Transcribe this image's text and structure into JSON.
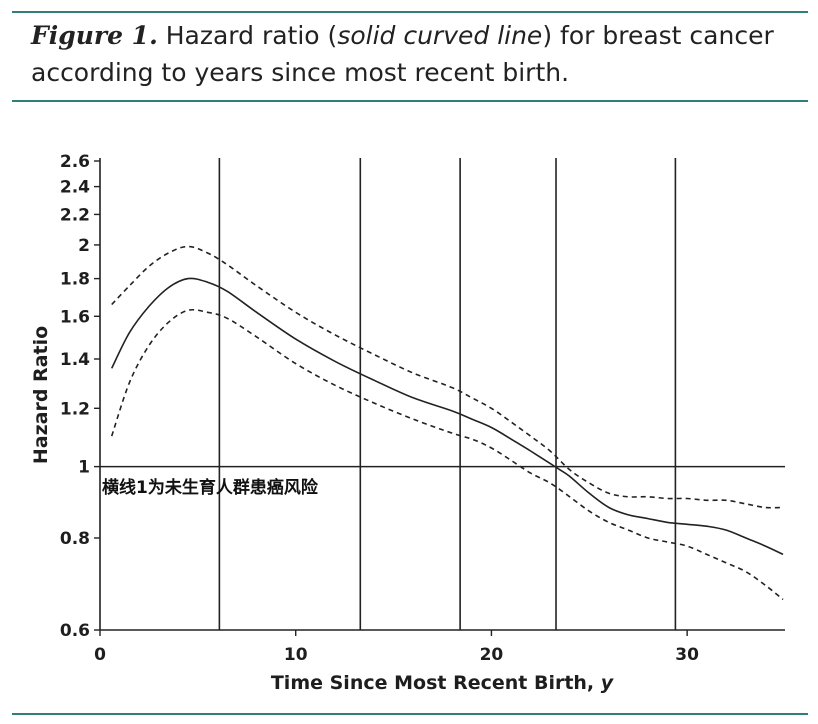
{
  "figure": {
    "label": "Figure 1.",
    "caption_before": " Hazard ratio (",
    "caption_italic": "solid curved line",
    "caption_after": ") for breast cancer according to years since most recent birth."
  },
  "colors": {
    "rule": "#2f7f7a",
    "line": "#222222"
  },
  "chart_data": {
    "type": "line",
    "title": "",
    "xlabel_main": "Time Since Most Recent Birth, ",
    "xlabel_unit": "y",
    "ylabel": "Hazard Ratio",
    "xlim": [
      0,
      35
    ],
    "ylim": [
      0.6,
      2.6
    ],
    "y_scale": "log",
    "x_ticks": [
      0,
      10,
      20,
      30
    ],
    "y_ticks": [
      0.6,
      0.8,
      1,
      1.2,
      1.4,
      1.6,
      1.8,
      2,
      2.2,
      2.4,
      2.6
    ],
    "y_tick_labels": [
      "0.6",
      "0.8",
      "1",
      "1.2",
      "1.4",
      "1.6",
      "1.8",
      "2",
      "2.2",
      "2.4",
      "2.6"
    ],
    "x_tick_labels": [
      "0",
      "10",
      "20",
      "30"
    ],
    "reference_line": {
      "y": 1
    },
    "vertical_lines_x": [
      6.1,
      13.3,
      18.4,
      23.3,
      29.4
    ],
    "annotation": "横线1为未生育人群患癌风险",
    "series": [
      {
        "style": "solid",
        "x": [
          0.6,
          1.5,
          2.5,
          3.5,
          4.5,
          5.5,
          6.5,
          8,
          10,
          12,
          14,
          16,
          18,
          19,
          20,
          21,
          22,
          23,
          23.5,
          24,
          25,
          26,
          27,
          28,
          29,
          30,
          31,
          32,
          33,
          34,
          34.9
        ],
        "y": [
          1.36,
          1.52,
          1.65,
          1.75,
          1.8,
          1.78,
          1.73,
          1.62,
          1.49,
          1.39,
          1.31,
          1.24,
          1.19,
          1.16,
          1.13,
          1.09,
          1.05,
          1.01,
          0.99,
          0.97,
          0.92,
          0.88,
          0.86,
          0.85,
          0.84,
          0.835,
          0.83,
          0.82,
          0.8,
          0.78,
          0.76
        ]
      },
      {
        "style": "dashed",
        "x": [
          0.6,
          1.5,
          2.5,
          3.5,
          4.5,
          5.5,
          6.5,
          8,
          10,
          12,
          14,
          16,
          18,
          19,
          20,
          21,
          22,
          23,
          24,
          25,
          26,
          27,
          28,
          29,
          30,
          31,
          32,
          33,
          34,
          34.9
        ],
        "y": [
          1.66,
          1.76,
          1.87,
          1.95,
          1.99,
          1.95,
          1.88,
          1.76,
          1.62,
          1.51,
          1.42,
          1.34,
          1.28,
          1.24,
          1.2,
          1.15,
          1.1,
          1.05,
          0.99,
          0.95,
          0.92,
          0.91,
          0.91,
          0.905,
          0.905,
          0.9,
          0.9,
          0.89,
          0.88,
          0.88
        ]
      },
      {
        "style": "dashed",
        "x": [
          0.6,
          1.5,
          2.5,
          3.5,
          4.5,
          5.5,
          6.5,
          8,
          10,
          12,
          14,
          16,
          18,
          19,
          20,
          21,
          22,
          23,
          24,
          25,
          26,
          27,
          28,
          29,
          30,
          31,
          32,
          33,
          34,
          34.9
        ],
        "y": [
          1.1,
          1.3,
          1.46,
          1.57,
          1.63,
          1.62,
          1.59,
          1.5,
          1.38,
          1.29,
          1.22,
          1.16,
          1.11,
          1.09,
          1.06,
          1.02,
          0.98,
          0.95,
          0.91,
          0.87,
          0.84,
          0.82,
          0.8,
          0.79,
          0.78,
          0.76,
          0.74,
          0.72,
          0.69,
          0.66
        ]
      }
    ]
  }
}
